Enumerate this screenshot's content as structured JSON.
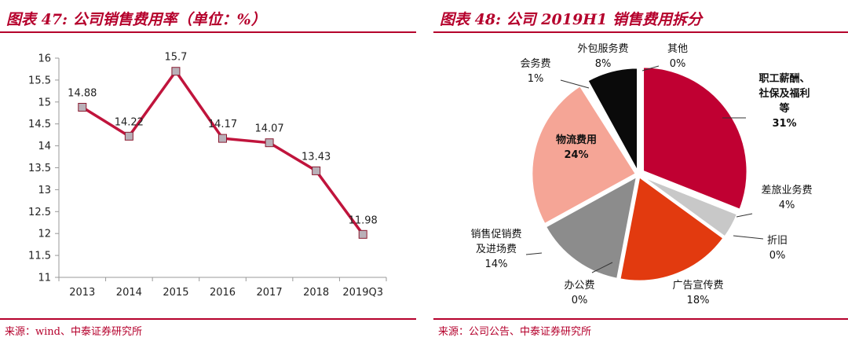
{
  "left": {
    "title": "图表 47: 公司销售费用率（单位：%）",
    "source": "来源：wind、中泰证券研究所"
  },
  "right": {
    "title": "图表 48: 公司 2019H1 销售费用拆分",
    "source": "来源：公司公告、中泰证券研究所"
  },
  "chart_data": [
    {
      "type": "line",
      "title": "图表 47: 公司销售费用率（单位：%）",
      "categories": [
        "2013",
        "2014",
        "2015",
        "2016",
        "2017",
        "2018",
        "2019Q3"
      ],
      "series": [
        {
          "values": [
            14.88,
            14.22,
            15.7,
            14.17,
            14.07,
            13.43,
            11.98
          ],
          "color": "#c0143c"
        }
      ],
      "data_labels": [
        "14.88",
        "14.22",
        "15.7",
        "14.17",
        "14.07",
        "13.43",
        "11.98"
      ],
      "ylim": [
        11,
        16
      ],
      "yticks": [
        "11",
        "11.5",
        "12",
        "12.5",
        "13",
        "13.5",
        "14",
        "14.5",
        "15",
        "15.5",
        "16"
      ],
      "grid": false,
      "marker_color": "#b9b0b8"
    },
    {
      "type": "pie",
      "title": "图表 48: 公司 2019H1 销售费用拆分",
      "slices": [
        {
          "label": [
            "职工薪酬、",
            "社保及福利",
            "等"
          ],
          "pct": "31%",
          "value": 31,
          "color": "#c00032",
          "bold": true
        },
        {
          "label": [
            "差旅业务费"
          ],
          "pct": "4%",
          "value": 4,
          "color": "#c8c8c8",
          "bold": false
        },
        {
          "label": [
            "折旧"
          ],
          "pct": "0%",
          "value": 0,
          "color": "#ffffff",
          "bold": false
        },
        {
          "label": [
            "广告宣传费"
          ],
          "pct": "18%",
          "value": 18,
          "color": "#e23a0f",
          "bold": false
        },
        {
          "label": [
            "办公费"
          ],
          "pct": "0%",
          "value": 0,
          "color": "#ffffff",
          "bold": false
        },
        {
          "label": [
            "销售促销费",
            "及进场费"
          ],
          "pct": "14%",
          "value": 14,
          "color": "#8c8c8c",
          "bold": false
        },
        {
          "label": [
            "物流费用"
          ],
          "pct": "24%",
          "value": 24,
          "color": "#f5a596",
          "bold": true
        },
        {
          "label": [
            "会务费"
          ],
          "pct": "1%",
          "value": 1,
          "color": "#ffffff",
          "bold": false
        },
        {
          "label": [
            "外包服务费"
          ],
          "pct": "8%",
          "value": 8,
          "color": "#0a0a0a",
          "bold": false
        },
        {
          "label": [
            "其他"
          ],
          "pct": "0%",
          "value": 0,
          "color": "#ffffff",
          "bold": false
        }
      ]
    }
  ]
}
